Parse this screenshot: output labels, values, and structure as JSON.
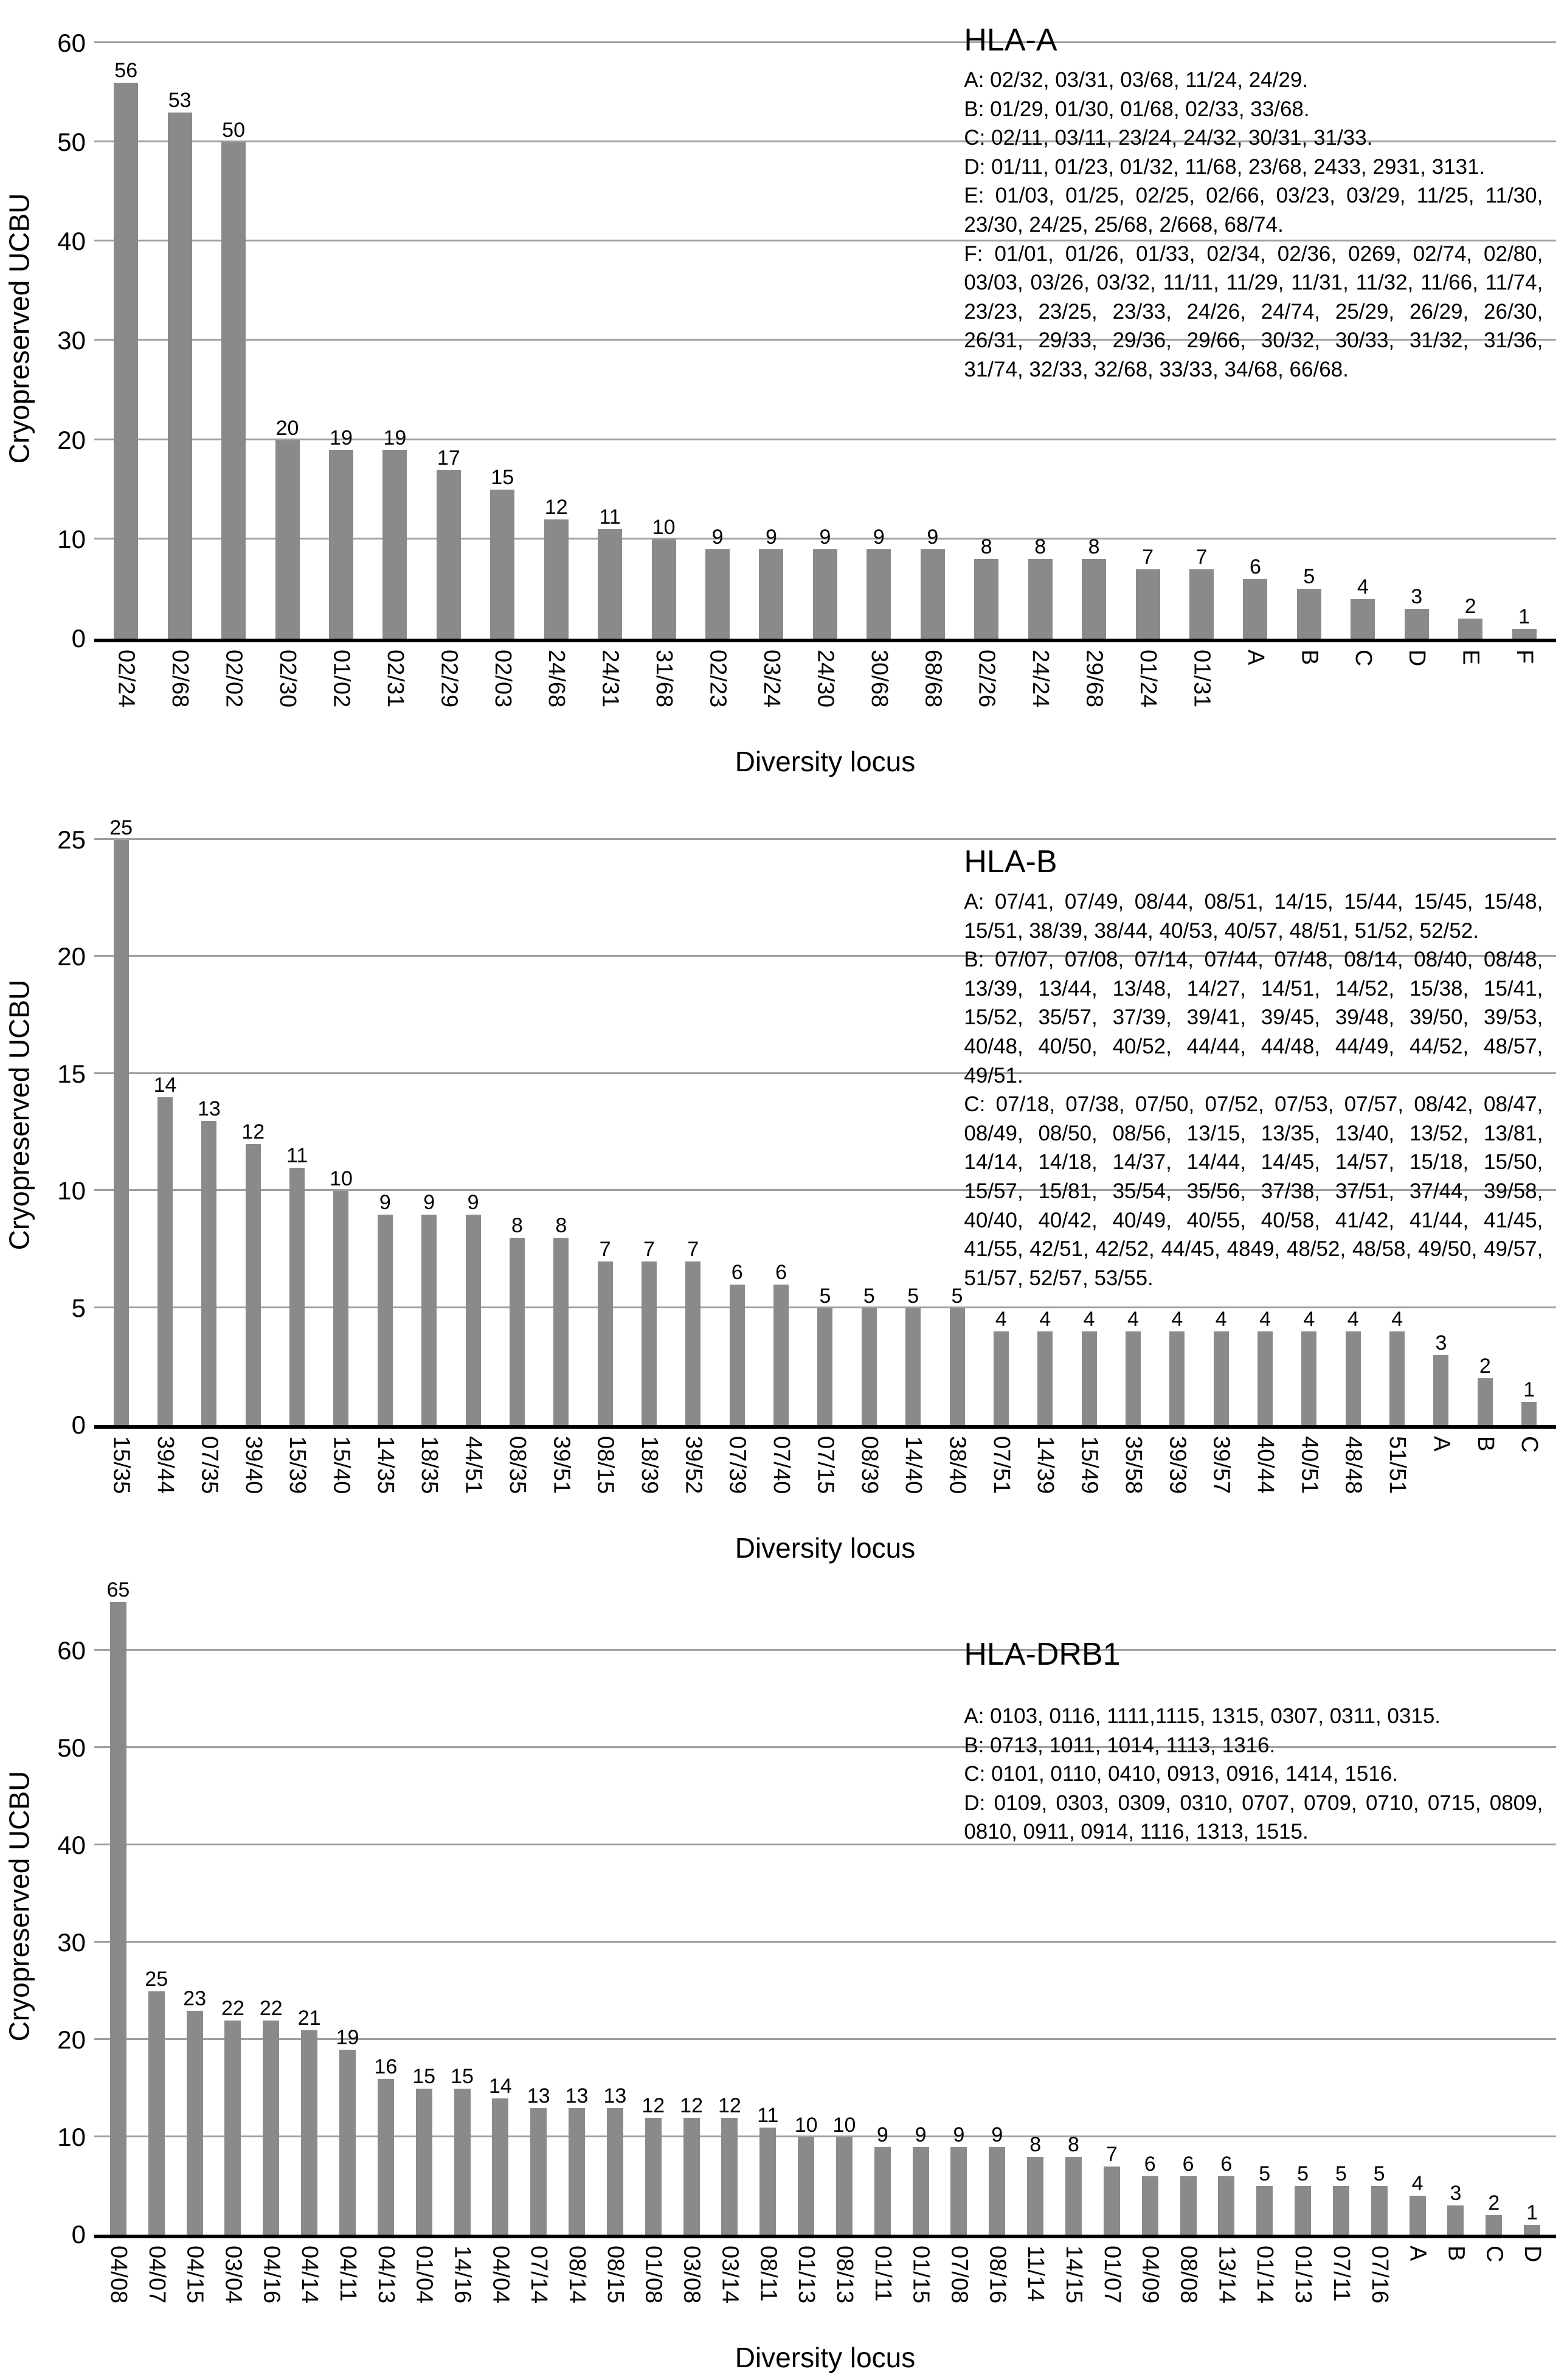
{
  "page": {
    "background": "#ffffff"
  },
  "colors": {
    "bar": "#8a8a8a",
    "gridline": "#9f9f9f",
    "axis": "#000000",
    "text": "#000000"
  },
  "chart_data": [
    {
      "type": "bar",
      "title": "HLA-A",
      "ylabel": "Cryopreserved UCBU",
      "xlabel": "Diversity locus",
      "yticks": [
        0,
        10,
        20,
        30,
        40,
        50,
        60
      ],
      "ylim": [
        0,
        60
      ],
      "grid": true,
      "legend": "none",
      "categories": [
        "02/24",
        "02/68",
        "02/02",
        "02/30",
        "01/02",
        "02/31",
        "02/29",
        "02/03",
        "24/68",
        "24/31",
        "31/68",
        "02/23",
        "03/24",
        "24/30",
        "30/68",
        "68/68",
        "02/26",
        "24/24",
        "29/68",
        "01/24",
        "01/31",
        "A",
        "B",
        "C",
        "D",
        "E",
        "F"
      ],
      "values": [
        56,
        53,
        50,
        20,
        19,
        19,
        17,
        15,
        12,
        11,
        10,
        9,
        9,
        9,
        9,
        9,
        8,
        8,
        8,
        7,
        7,
        6,
        5,
        4,
        3,
        2,
        1
      ],
      "annotation": {
        "lines": [
          "A: 02/32, 03/31, 03/68, 11/24, 24/29.",
          "B: 01/29, 01/30, 01/68, 02/33, 33/68.",
          "C: 02/11, 03/11, 23/24, 24/32, 30/31, 31/33.",
          "D: 01/11, 01/23, 01/32, 11/68, 23/68, 2433, 2931, 3131.",
          "E: 01/03, 01/25, 02/25, 02/66, 03/23, 03/29, 11/25, 11/30, 23/30, 24/25, 25/68, 2/668, 68/74.",
          "F: 01/01, 01/26, 01/33, 02/34, 02/36, 0269, 02/74, 02/80, 03/03, 03/26, 03/32, 11/11, 11/29, 11/31, 11/32, 11/66, 11/74, 23/23, 23/25, 23/33, 24/26, 24/74, 25/29, 26/29, 26/30, 26/31, 29/33, 29/36, 29/66, 30/32, 30/33, 31/32, 31/36, 31/74, 32/33, 32/68, 33/33, 34/68, 66/68."
        ]
      }
    },
    {
      "type": "bar",
      "title": "HLA-B",
      "ylabel": "Cryopreserved UCBU",
      "xlabel": "Diversity locus",
      "yticks": [
        0,
        5,
        10,
        15,
        20,
        25
      ],
      "ylim": [
        0,
        25
      ],
      "grid": true,
      "legend": "none",
      "categories": [
        "15/35",
        "39/44",
        "07/35",
        "39/40",
        "15/39",
        "15/40",
        "14/35",
        "18/35",
        "44/51",
        "08/35",
        "39/51",
        "08/15",
        "18/39",
        "39/52",
        "07/39",
        "07/40",
        "07/15",
        "08/39",
        "14/40",
        "38/40",
        "07/51",
        "14/39",
        "15/49",
        "35/58",
        "39/39",
        "39/57",
        "40/44",
        "40/51",
        "48/48",
        "51/51",
        "A",
        "B",
        "C"
      ],
      "values": [
        25,
        14,
        13,
        12,
        11,
        10,
        9,
        9,
        9,
        8,
        8,
        7,
        7,
        7,
        6,
        6,
        5,
        5,
        5,
        5,
        4,
        4,
        4,
        4,
        4,
        4,
        4,
        4,
        4,
        4,
        3,
        2,
        1
      ],
      "annotation": {
        "lines": [
          "A: 07/41, 07/49, 08/44, 08/51, 14/15, 15/44, 15/45, 15/48, 15/51, 38/39, 38/44, 40/53, 40/57, 48/51, 51/52, 52/52.",
          "B: 07/07, 07/08, 07/14, 07/44, 07/48, 08/14, 08/40, 08/48, 13/39, 13/44, 13/48, 14/27, 14/51, 14/52, 15/38, 15/41, 15/52, 35/57, 37/39, 39/41, 39/45, 39/48, 39/50, 39/53, 40/48, 40/50, 40/52, 44/44, 44/48, 44/49, 44/52, 48/57, 49/51.",
          "C: 07/18, 07/38, 07/50, 07/52, 07/53, 07/57, 08/42, 08/47, 08/49, 08/50, 08/56, 13/15, 13/35, 13/40, 13/52, 13/81, 14/14, 14/18, 14/37, 14/44, 14/45, 14/57, 15/18, 15/50, 15/57, 15/81, 35/54, 35/56, 37/38, 37/51, 37/44, 39/58, 40/40, 40/42, 40/49, 40/55, 40/58, 41/42, 41/44, 41/45, 41/55, 42/51, 42/52, 44/45, 4849, 48/52, 48/58, 49/50, 49/57, 51/57, 52/57, 53/55."
        ]
      }
    },
    {
      "type": "bar",
      "title": "HLA-DRB1",
      "ylabel": "Cryopreserved UCBU",
      "xlabel": "Diversity locus",
      "yticks": [
        0,
        10,
        20,
        30,
        40,
        50,
        60
      ],
      "ylim": [
        0,
        65
      ],
      "grid": true,
      "legend": "none",
      "categories": [
        "04/08",
        "04/07",
        "04/15",
        "03/04",
        "04/16",
        "04/14",
        "04/11",
        "04/13",
        "01/04",
        "14/16",
        "04/04",
        "07/14",
        "08/14",
        "08/15",
        "01/08",
        "03/08",
        "03/14",
        "08/11",
        "01/13",
        "08/13",
        "01/11",
        "01/15",
        "07/08",
        "08/16",
        "11/14",
        "14/15",
        "01/07",
        "04/09",
        "08/08",
        "13/14",
        "01/14",
        "01/13",
        "07/11",
        "07/16",
        "A",
        "B",
        "C",
        "D"
      ],
      "values": [
        65,
        25,
        23,
        22,
        22,
        21,
        19,
        16,
        15,
        15,
        14,
        13,
        13,
        13,
        12,
        12,
        12,
        11,
        10,
        10,
        9,
        9,
        9,
        9,
        8,
        8,
        7,
        6,
        6,
        6,
        5,
        5,
        5,
        5,
        4,
        3,
        2,
        1
      ],
      "annotation": {
        "lines": [
          "A: 0103, 0116, 1111,1115, 1315, 0307, 0311, 0315.",
          "B: 0713, 1011, 1014, 1113, 1316.",
          "C: 0101, 0110, 0410, 0913, 0916, 1414, 1516.",
          "D: 0109, 0303, 0309, 0310, 0707, 0709, 0710, 0715, 0809, 0810, 0911, 0914, 1116, 1313, 1515."
        ]
      }
    }
  ]
}
